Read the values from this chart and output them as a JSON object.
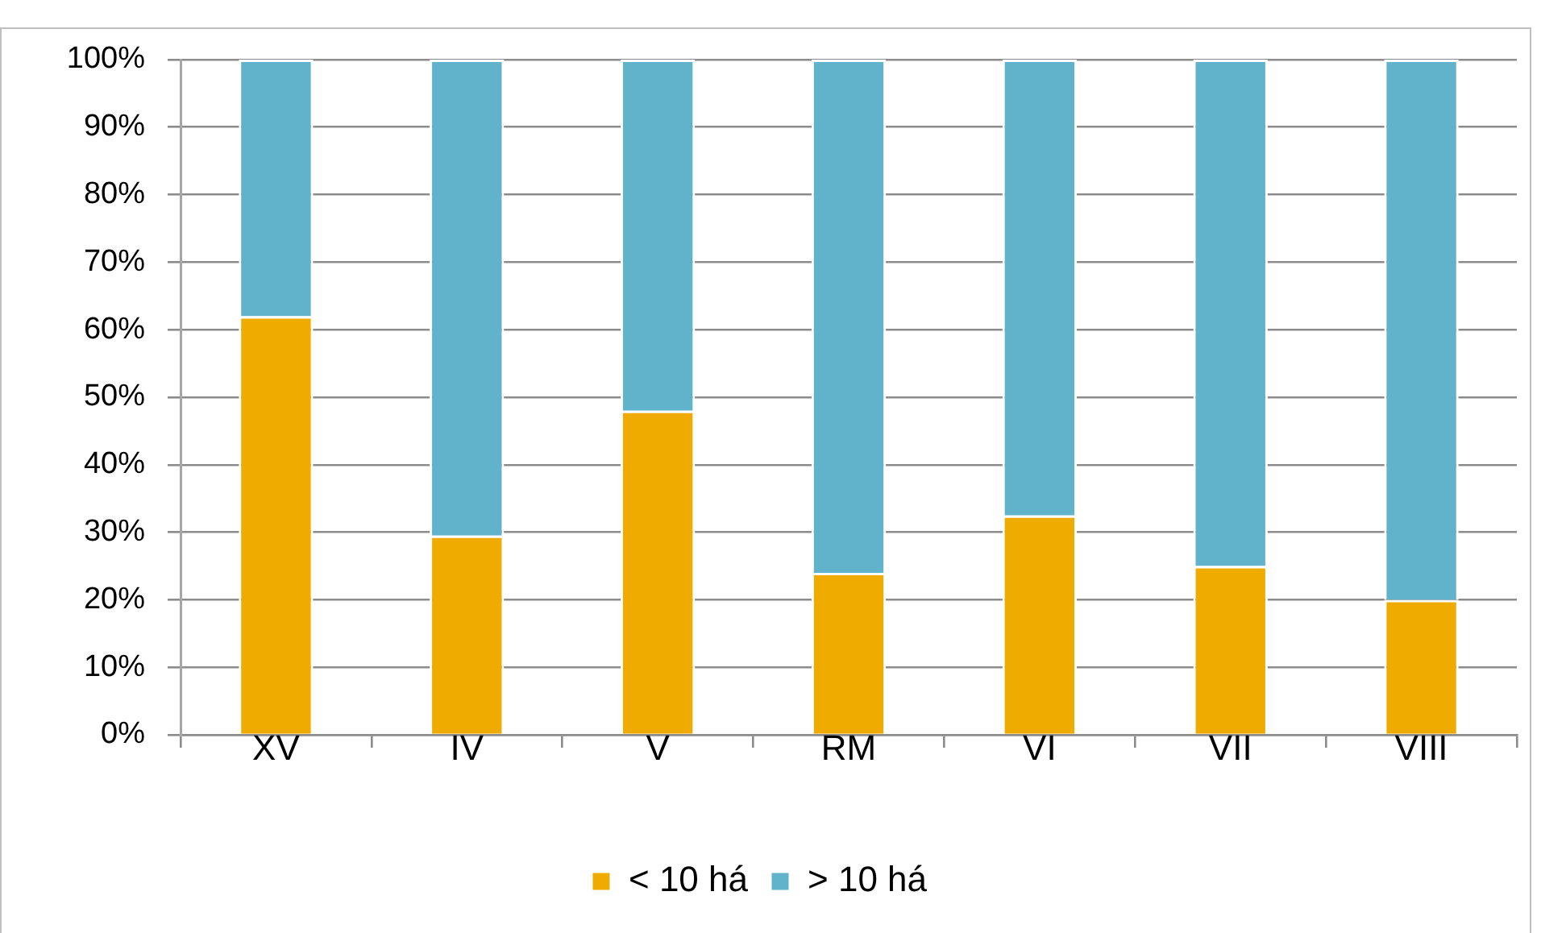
{
  "chart_data": {
    "type": "bar",
    "categories": [
      "XV",
      "IV",
      "V",
      "RM",
      "VI",
      "VII",
      "VIII"
    ],
    "series": [
      {
        "name": "< 10 há",
        "color": "#f0ab00",
        "values": [
          62,
          29.5,
          48,
          24,
          32.5,
          25,
          20
        ]
      },
      {
        "name": "> 10 há",
        "color": "#61b3cc",
        "values": [
          38,
          70.5,
          52,
          76,
          67.5,
          75,
          80
        ]
      }
    ],
    "stacked": true,
    "ylim": [
      0,
      100
    ],
    "yticks": [
      {
        "value": 0,
        "label": "0%"
      },
      {
        "value": 10,
        "label": "10%"
      },
      {
        "value": 20,
        "label": "20%"
      },
      {
        "value": 30,
        "label": "30%"
      },
      {
        "value": 40,
        "label": "40%"
      },
      {
        "value": 50,
        "label": "50%"
      },
      {
        "value": 60,
        "label": "60%"
      },
      {
        "value": 70,
        "label": "70%"
      },
      {
        "value": 80,
        "label": "80%"
      },
      {
        "value": 90,
        "label": "90%"
      },
      {
        "value": 100,
        "label": "100%"
      }
    ],
    "grid": "y",
    "legend": "bottom"
  }
}
